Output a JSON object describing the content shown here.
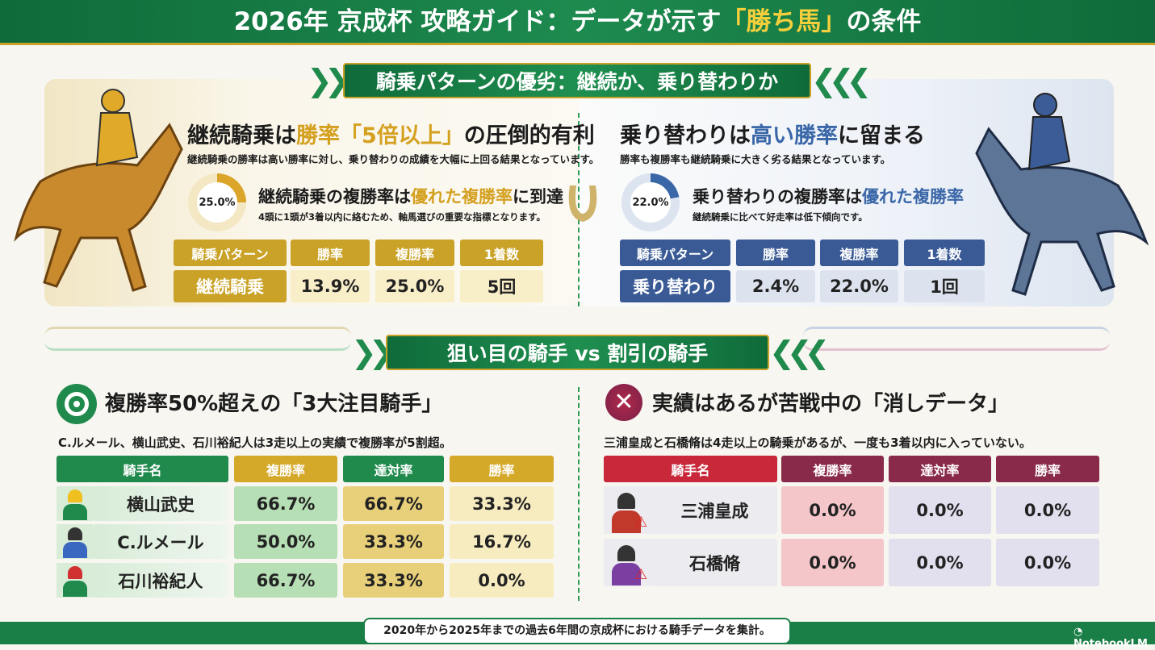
{
  "header": {
    "title_pre": "2026年 京成杯 攻略ガイド：データが示す",
    "title_hl": "「勝ち馬」",
    "title_post": "の条件"
  },
  "section1": {
    "ribbon": "騎乗パターンの優劣：継続か、乗り替わりか",
    "left": {
      "heading_pre": "継続騎乗は",
      "heading_hl": "勝率「5倍以上」",
      "heading_post": "の圧倒的有利",
      "subtitle": "継続騎乗の勝率は高い勝率に対し、乗り替わりの成績を大幅に上回る結果となっています。",
      "donut_label": "25.0%",
      "donut_value": 25.0,
      "subheading_pre": "継続騎乗の複勝率は",
      "subheading_hl": "優れた複勝率",
      "subheading_post": "に到達",
      "note": "4頭に1頭が3着以内に絡むため、軸馬選びの重要な指標となります。",
      "table": {
        "headers": [
          "騎乗パターン",
          "勝率",
          "複勝率",
          "1着数"
        ],
        "row": [
          "継続騎乗",
          "13.9%",
          "25.0%",
          "5回"
        ]
      }
    },
    "right": {
      "heading_pre": "乗り替わりは",
      "heading_hl": "高い勝率",
      "heading_post": "に留まる",
      "subtitle": "勝率も複勝率も継続騎乗に大きく劣る結果となっています。",
      "donut_label": "22.0%",
      "donut_value": 22.0,
      "subheading_pre": "乗り替わりの複勝率は",
      "subheading_hl": "優れた複勝率",
      "subheading_post": "",
      "note": "継続騎乗に比べて好走率は低下傾向です。",
      "table": {
        "headers": [
          "騎乗パターン",
          "勝率",
          "複勝率",
          "1着数"
        ],
        "row": [
          "乗り替わり",
          "2.4%",
          "22.0%",
          "1回"
        ]
      }
    }
  },
  "section2": {
    "ribbon": "狙い目の騎手 vs 割引の騎手",
    "left": {
      "heading": "複勝率50%超えの「3大注目騎手」",
      "subtitle": "C.ルメール、横山武史、石川裕紀人は3走以上の実績で複勝率が5割超。",
      "headers": [
        "騎手名",
        "複勝率",
        "達対率",
        "勝率"
      ],
      "rows": [
        [
          "横山武史",
          "66.7%",
          "66.7%",
          "33.3%"
        ],
        [
          "C.ルメール",
          "50.0%",
          "33.3%",
          "16.7%"
        ],
        [
          "石川裕紀人",
          "66.7%",
          "33.3%",
          "0.0%"
        ]
      ]
    },
    "right": {
      "heading": "実績はあるが苦戦中の「消しデータ」",
      "subtitle": "三浦皇成と石橋脩は4走以上の騎乗があるが、一度も3着以内に入っていない。",
      "headers": [
        "騎手名",
        "複勝率",
        "達対率",
        "勝率"
      ],
      "rows": [
        [
          "三浦皇成",
          "0.0%",
          "0.0%",
          "0.0%"
        ],
        [
          "石橋脩",
          "0.0%",
          "0.0%",
          "0.0%"
        ]
      ]
    }
  },
  "footer": {
    "note": "2020年から2025年までの過去6年間の京成杯における騎手データを集計。",
    "brand": "NotebookLM"
  }
}
